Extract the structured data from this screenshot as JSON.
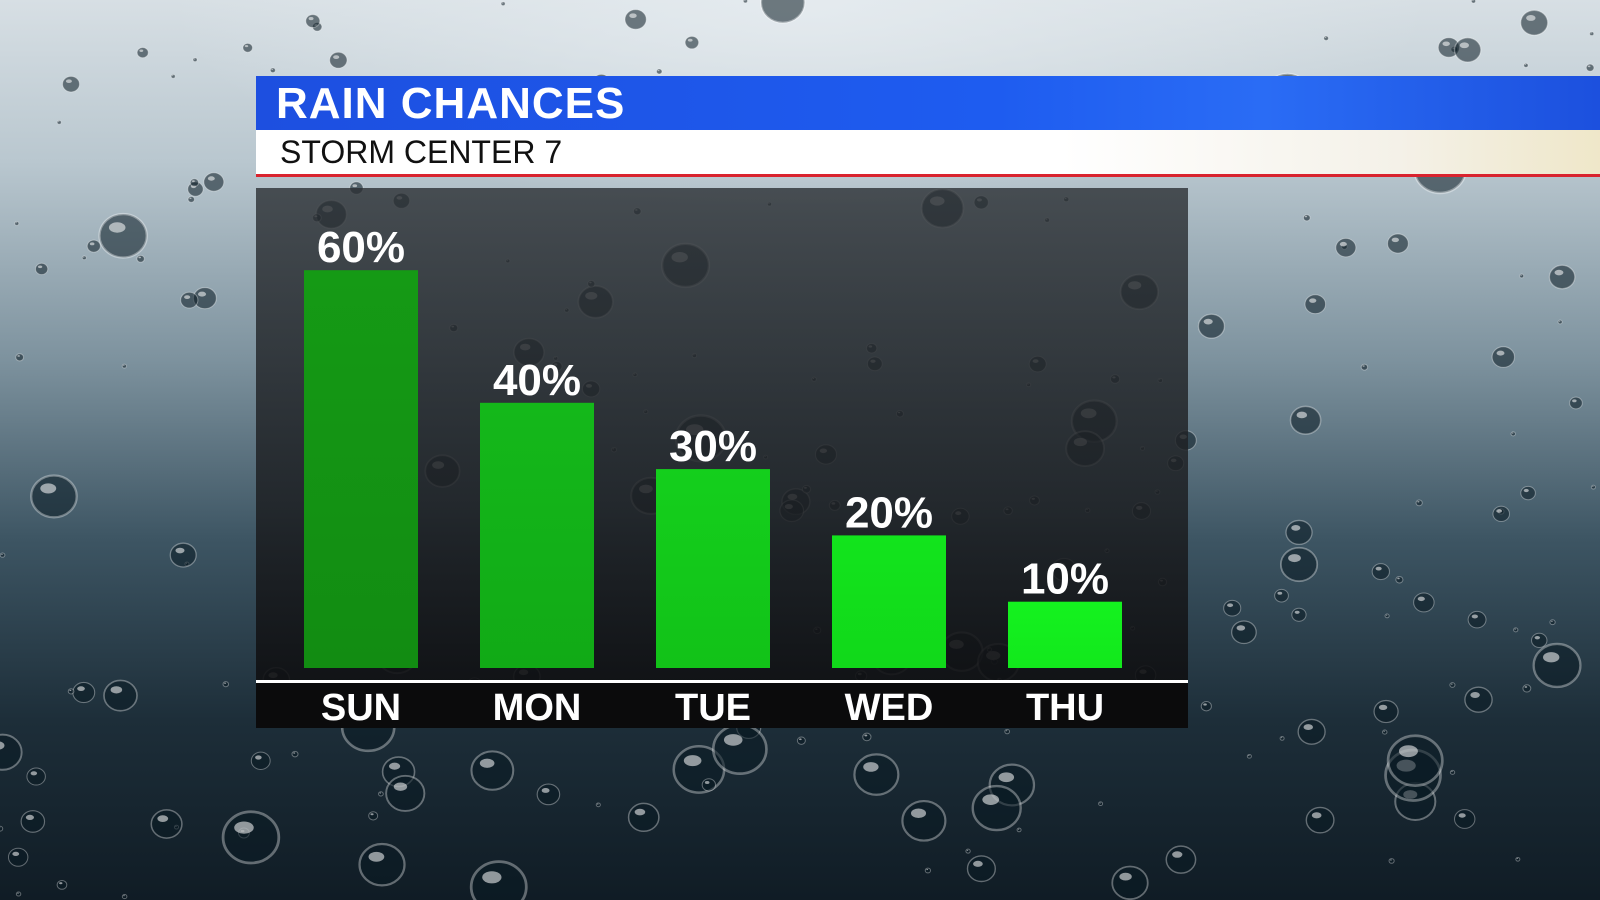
{
  "header": {
    "title": "RAIN CHANCES",
    "subtitle": "STORM CENTER 7"
  },
  "colors": {
    "banner_blue": "#1e5cf0",
    "accent_red": "#d9232e",
    "bar_green_dark": "#14a014",
    "bar_green_bright": "#12f01c"
  },
  "chart_data": {
    "type": "bar",
    "categories": [
      "SUN",
      "MON",
      "TUE",
      "WED",
      "THU"
    ],
    "values": [
      60,
      40,
      30,
      20,
      10
    ],
    "value_labels": [
      "60%",
      "40%",
      "30%",
      "20%",
      "10%"
    ],
    "ylim": [
      0,
      70
    ],
    "grid": false
  }
}
